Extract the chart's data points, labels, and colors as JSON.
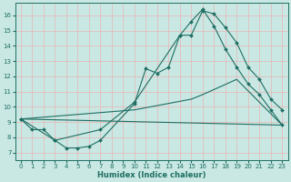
{
  "xlabel": "Humidex (Indice chaleur)",
  "xlim": [
    -0.5,
    23.5
  ],
  "ylim": [
    6.5,
    16.8
  ],
  "yticks": [
    7,
    8,
    9,
    10,
    11,
    12,
    13,
    14,
    15,
    16
  ],
  "xticks": [
    0,
    1,
    2,
    3,
    4,
    5,
    6,
    7,
    8,
    9,
    10,
    11,
    12,
    13,
    14,
    15,
    16,
    17,
    18,
    19,
    20,
    21,
    22,
    23
  ],
  "bg_color": "#c9e8e4",
  "line_color": "#1e6e62",
  "grid_color": "#e8b4b4",
  "line1_x": [
    0,
    1,
    2,
    3,
    4,
    5,
    6,
    7,
    10,
    11,
    12,
    13,
    14,
    15,
    16,
    17,
    18,
    19,
    20,
    21,
    22,
    23
  ],
  "line1_y": [
    9.2,
    8.5,
    8.5,
    7.8,
    7.3,
    7.3,
    7.4,
    7.8,
    10.2,
    12.5,
    12.2,
    12.6,
    14.7,
    14.7,
    16.3,
    16.1,
    15.2,
    14.2,
    12.6,
    11.8,
    10.5,
    9.8
  ],
  "line2_x": [
    0,
    3,
    7,
    10,
    14,
    15,
    16,
    17,
    18,
    19,
    20,
    21,
    22,
    23
  ],
  "line2_y": [
    9.2,
    7.8,
    8.5,
    10.3,
    14.7,
    15.6,
    16.4,
    15.3,
    13.8,
    12.6,
    11.5,
    10.8,
    9.8,
    8.8
  ],
  "line3_x": [
    0,
    23
  ],
  "line3_y": [
    9.2,
    8.8
  ],
  "line4_x": [
    0,
    10,
    15,
    16,
    19,
    23
  ],
  "line4_y": [
    9.2,
    9.8,
    10.5,
    10.8,
    11.8,
    8.8
  ]
}
